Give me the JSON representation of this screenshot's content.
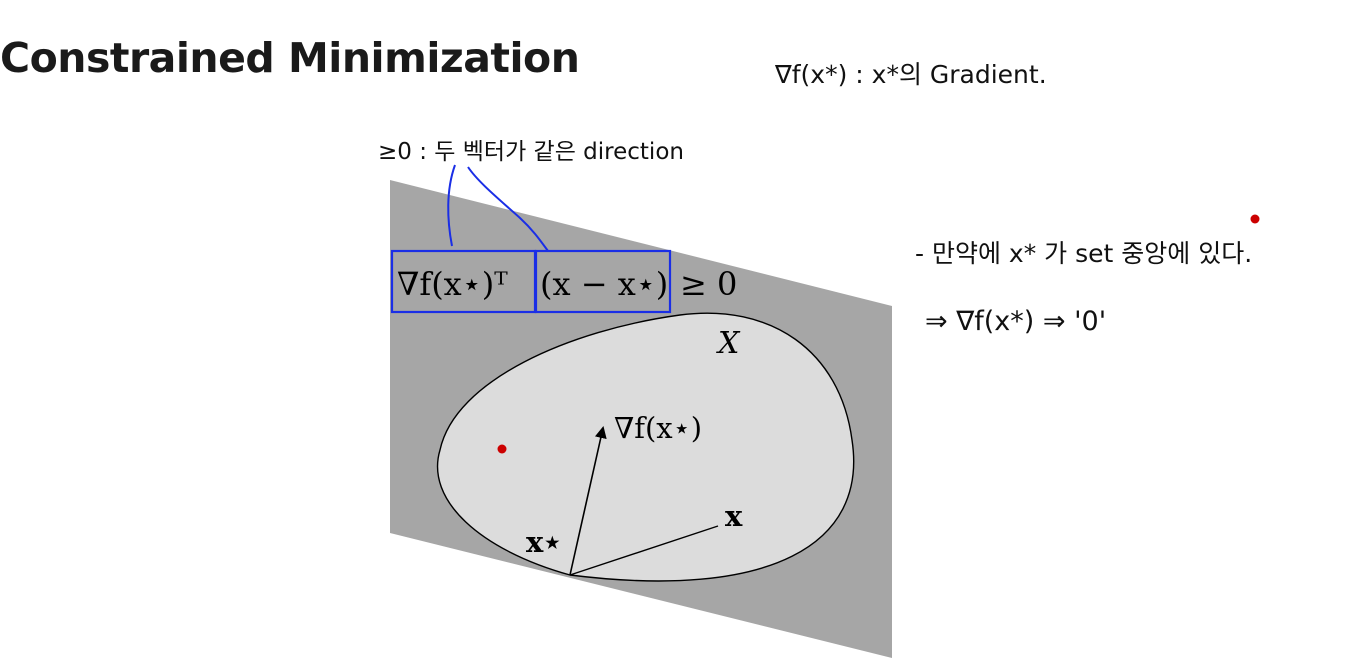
{
  "slide": {
    "title": "Constrained Minimization"
  },
  "figure": {
    "set_label": "X",
    "gradient_label": "∇f(x⋆)",
    "x_star_label": "x⋆",
    "x_label": "x",
    "condition": {
      "grad_part": "∇f(x⋆)ᵀ",
      "diff_part": "(x − x⋆)",
      "ineq": "≥ 0"
    }
  },
  "annotations": {
    "top_note": "≥0 : 두 벡터가 같은 direction",
    "right_header": "∇f(x*) : x*의 Gradient.",
    "right_line1": "- 만약에 x* 가 set 중앙에 있다.",
    "right_line2": "⇒ ∇f(x*) ⇒ '0'"
  },
  "colors": {
    "halfspace": "#a6a6a6",
    "set_fill": "#dcdcdc",
    "highlight_box": "#1a2ee6",
    "red_dot": "#cc0000"
  }
}
